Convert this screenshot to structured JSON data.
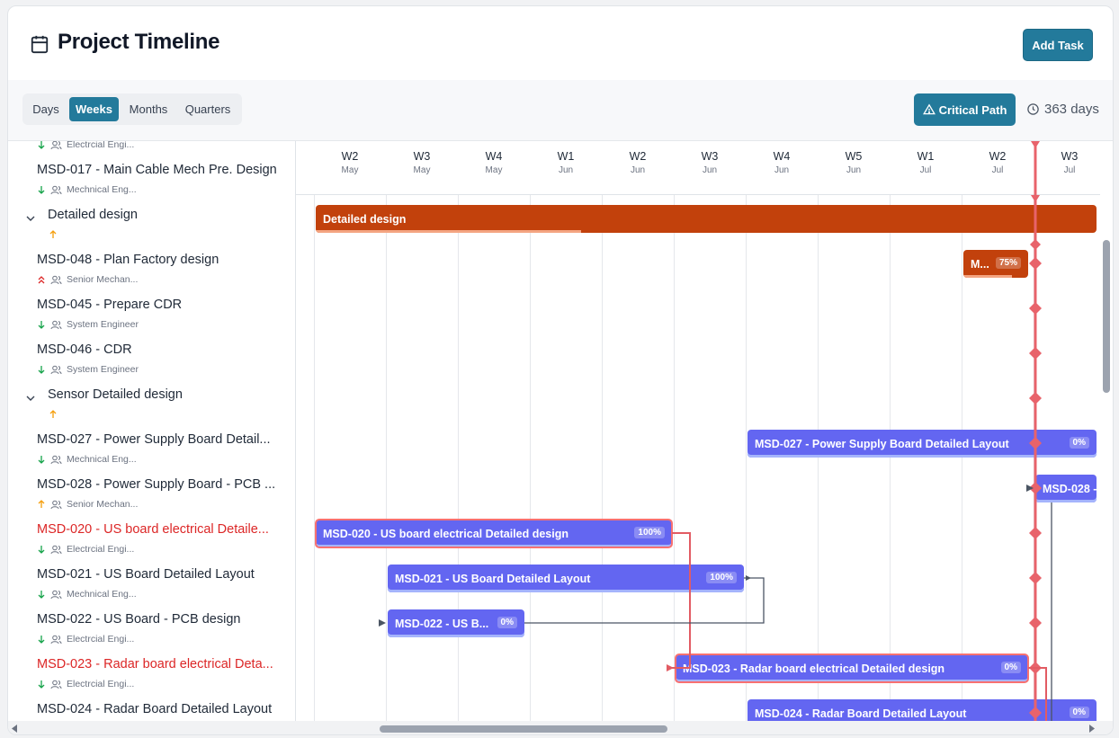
{
  "header": {
    "title": "Project Timeline",
    "add_task_label": "Add Task"
  },
  "toolbar": {
    "scales": [
      "Days",
      "Weeks",
      "Months",
      "Quarters"
    ],
    "active_scale": "Weeks",
    "critical_path_label": "Critical Path",
    "duration": "363 days"
  },
  "timescale": [
    {
      "week": "W2",
      "month": "May"
    },
    {
      "week": "W3",
      "month": "May"
    },
    {
      "week": "W4",
      "month": "May"
    },
    {
      "week": "W1",
      "month": "Jun"
    },
    {
      "week": "W2",
      "month": "Jun"
    },
    {
      "week": "W3",
      "month": "Jun"
    },
    {
      "week": "W4",
      "month": "Jun"
    },
    {
      "week": "W5",
      "month": "Jun"
    },
    {
      "week": "W1",
      "month": "Jul"
    },
    {
      "week": "W2",
      "month": "Jul"
    },
    {
      "week": "W3",
      "month": "Jul"
    }
  ],
  "rows": [
    {
      "kind": "meta-only",
      "role": "Electrcial Engi...",
      "priority": "low"
    },
    {
      "kind": "task",
      "name": "MSD-017 - Main Cable Mech Pre. Design",
      "role": "Mechnical Eng...",
      "priority": "low",
      "critical": false
    },
    {
      "kind": "group",
      "name": "Detailed design",
      "priority": "medium"
    },
    {
      "kind": "task",
      "name": "MSD-048 - Plan Factory design",
      "role": "Senior Mechan...",
      "priority": "high",
      "critical": false
    },
    {
      "kind": "task",
      "name": "MSD-045 - Prepare CDR",
      "role": "System Engineer",
      "priority": "low",
      "critical": false
    },
    {
      "kind": "task",
      "name": "MSD-046 - CDR",
      "role": "System Engineer",
      "priority": "low",
      "critical": false
    },
    {
      "kind": "group",
      "name": "Sensor Detailed design",
      "priority": "medium"
    },
    {
      "kind": "task",
      "name": "MSD-027 - Power Supply Board Detail...",
      "role": "Mechnical Eng...",
      "priority": "low",
      "critical": false
    },
    {
      "kind": "task",
      "name": "MSD-028 - Power Supply Board - PCB ...",
      "role": "Senior Mechan...",
      "priority": "medium",
      "critical": false
    },
    {
      "kind": "task",
      "name": "MSD-020 - US board electrical Detaile...",
      "role": "Electrcial Engi...",
      "priority": "low",
      "critical": true
    },
    {
      "kind": "task",
      "name": "MSD-021 - US Board Detailed Layout",
      "role": "Mechnical Eng...",
      "priority": "low",
      "critical": false
    },
    {
      "kind": "task",
      "name": "MSD-022 - US Board - PCB design",
      "role": "Electrcial Engi...",
      "priority": "low",
      "critical": false
    },
    {
      "kind": "task",
      "name": "MSD-023 - Radar board electrical Deta...",
      "role": "Electrcial Engi...",
      "priority": "low",
      "critical": true
    },
    {
      "kind": "task",
      "name": "MSD-024 - Radar Board Detailed Layout",
      "role": "",
      "priority": "low",
      "critical": false
    }
  ],
  "bars": [
    {
      "row": 2,
      "label": "Detailed design",
      "pct": "",
      "color": "orange",
      "start_week": 0,
      "end_week": 10.9,
      "progress": 0.34
    },
    {
      "row": 3,
      "label": "M...",
      "pct": "75%",
      "color": "orange",
      "start_week": 9.0,
      "end_week": 9.95,
      "progress": 0.75
    },
    {
      "row": 7,
      "label": "MSD-027 - Power Supply Board Detailed Layout",
      "pct": "0%",
      "color": "blue",
      "start_week": 6.0,
      "end_week": 10.9,
      "progress": 0
    },
    {
      "row": 8,
      "label": "MSD-028 -",
      "pct": "",
      "color": "blue",
      "start_week": 10.0,
      "end_week": 10.9,
      "progress": 0
    },
    {
      "row": 9,
      "label": "MSD-020 - US board electrical Detailed design",
      "pct": "100%",
      "color": "blue",
      "start_week": 0,
      "end_week": 5.0,
      "progress": 1,
      "critical": true
    },
    {
      "row": 10,
      "label": "MSD-021 - US Board Detailed Layout",
      "pct": "100%",
      "color": "blue",
      "start_week": 1.0,
      "end_week": 6.0,
      "progress": 1
    },
    {
      "row": 11,
      "label": "MSD-022 - US B...",
      "pct": "0%",
      "color": "blue",
      "start_week": 1.0,
      "end_week": 2.95,
      "progress": 0
    },
    {
      "row": 12,
      "label": "MSD-023 - Radar board electrical Detailed design",
      "pct": "0%",
      "color": "blue",
      "start_week": 5.0,
      "end_week": 9.95,
      "progress": 0,
      "critical": true
    },
    {
      "row": 13,
      "label": "MSD-024 - Radar Board Detailed Layout",
      "pct": "0%",
      "color": "blue",
      "start_week": 6.0,
      "end_week": 10.9,
      "progress": 0
    }
  ],
  "today_week": 10.0,
  "colors": {
    "accent": "#237a9b",
    "bar_blue": "#6366f1",
    "bar_orange": "#c2410c",
    "critical": "#dc2626",
    "today": "#e8636b"
  }
}
